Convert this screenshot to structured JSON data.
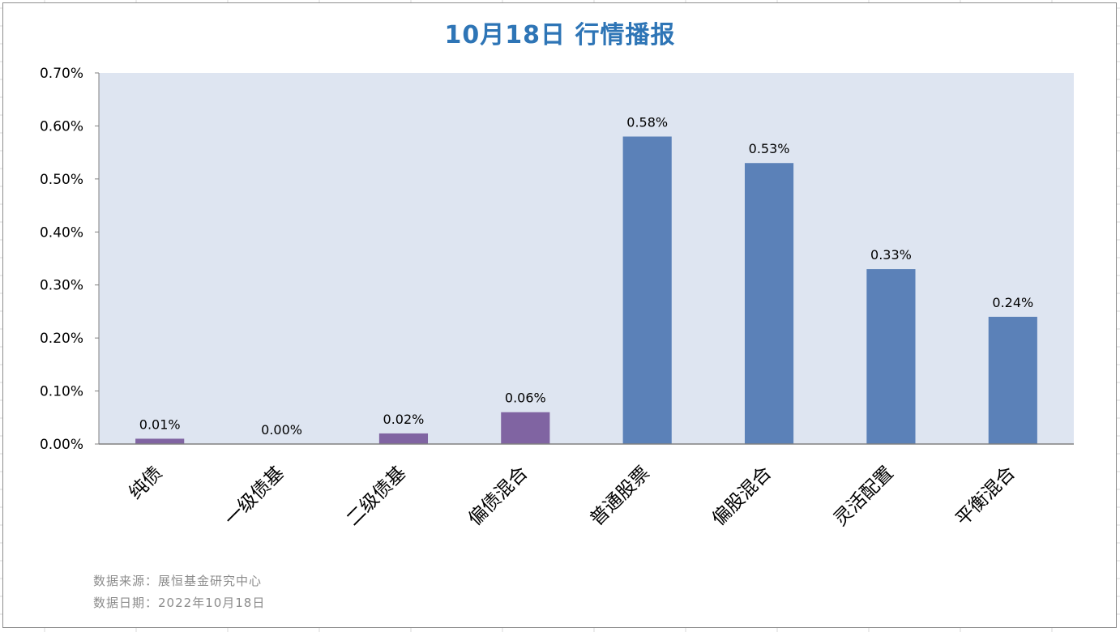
{
  "chart_data": {
    "type": "bar",
    "title": "10月18日  行情播报",
    "categories": [
      "纯债",
      "一级债基",
      "二级债基",
      "偏债混合",
      "普通股票",
      "偏股混合",
      "灵活配置",
      "平衡混合"
    ],
    "values": [
      0.01,
      0.0,
      0.02,
      0.06,
      0.58,
      0.53,
      0.33,
      0.24
    ],
    "value_labels": [
      "0.01%",
      "0.00%",
      "0.02%",
      "0.06%",
      "0.58%",
      "0.53%",
      "0.33%",
      "0.24%"
    ],
    "y_ticks": [
      "0.00%",
      "0.10%",
      "0.20%",
      "0.30%",
      "0.40%",
      "0.50%",
      "0.60%",
      "0.70%"
    ],
    "ylim": [
      0,
      0.7
    ],
    "xlabel": "",
    "ylabel": "",
    "grid": false,
    "legend": "none",
    "colors": {
      "bond_group": "#8064a2",
      "equity_group": "#5b81b8",
      "plot_background": "#dee5f1",
      "title": "#2e75b6"
    },
    "bar_colors": [
      "#8064a2",
      "#8064a2",
      "#8064a2",
      "#8064a2",
      "#5b81b8",
      "#5b81b8",
      "#5b81b8",
      "#5b81b8"
    ]
  },
  "footer": {
    "source": "数据来源：展恒基金研究中心",
    "date": "数据日期：2022年10月18日"
  }
}
